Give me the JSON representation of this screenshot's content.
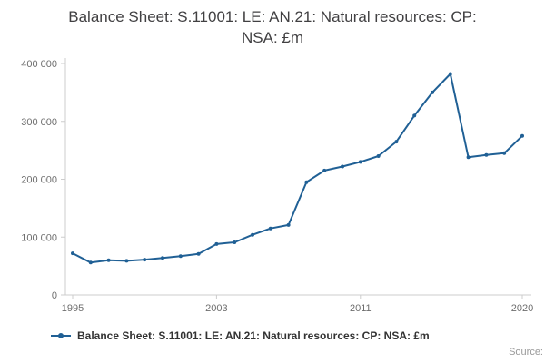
{
  "page": {
    "title_line1": "Balance Sheet: S.11001: LE: AN.21: Natural resources: CP:",
    "title_line2": "NSA: £m",
    "source_label": "Source:"
  },
  "legend": {
    "label": "Balance Sheet: S.11001: LE: AN.21: Natural resources: CP: NSA: £m"
  },
  "colors": {
    "line": "#206095",
    "axis": "#cccccc",
    "tick_text": "#6e6e6e"
  },
  "chart_data": {
    "type": "line",
    "title": "Balance Sheet: S.11001: LE: AN.21: Natural resources: CP: NSA: £m",
    "series": [
      {
        "name": "Balance Sheet: S.11001: LE: AN.21: Natural resources: CP: NSA: £m",
        "color": "#206095",
        "x": [
          1995,
          1996,
          1997,
          1998,
          1999,
          2000,
          2001,
          2002,
          2003,
          2004,
          2005,
          2006,
          2007,
          2008,
          2009,
          2010,
          2011,
          2012,
          2013,
          2014,
          2015,
          2016,
          2017,
          2018,
          2019,
          2020
        ],
        "values": [
          72000,
          56000,
          60000,
          59000,
          61000,
          64000,
          67000,
          71000,
          88000,
          91000,
          104000,
          115000,
          121000,
          195000,
          215000,
          222000,
          230000,
          240000,
          265000,
          310000,
          350000,
          382000,
          238000,
          242000,
          245000,
          275000
        ]
      }
    ],
    "xlabel": "",
    "ylabel": "",
    "xlim": [
      1995,
      2020
    ],
    "ylim": [
      0,
      400000
    ],
    "yticks": [
      {
        "value": 0,
        "label": "0"
      },
      {
        "value": 100000,
        "label": "100 000"
      },
      {
        "value": 200000,
        "label": "200 000"
      },
      {
        "value": 300000,
        "label": "300 000"
      },
      {
        "value": 400000,
        "label": "400 000"
      }
    ],
    "xticks": [
      {
        "value": 1995,
        "label": "1995"
      },
      {
        "value": 2003,
        "label": "2003"
      },
      {
        "value": 2011,
        "label": "2011"
      },
      {
        "value": 2020,
        "label": "2020"
      }
    ],
    "grid": false,
    "markers": true,
    "legend_position": "bottom-left"
  }
}
